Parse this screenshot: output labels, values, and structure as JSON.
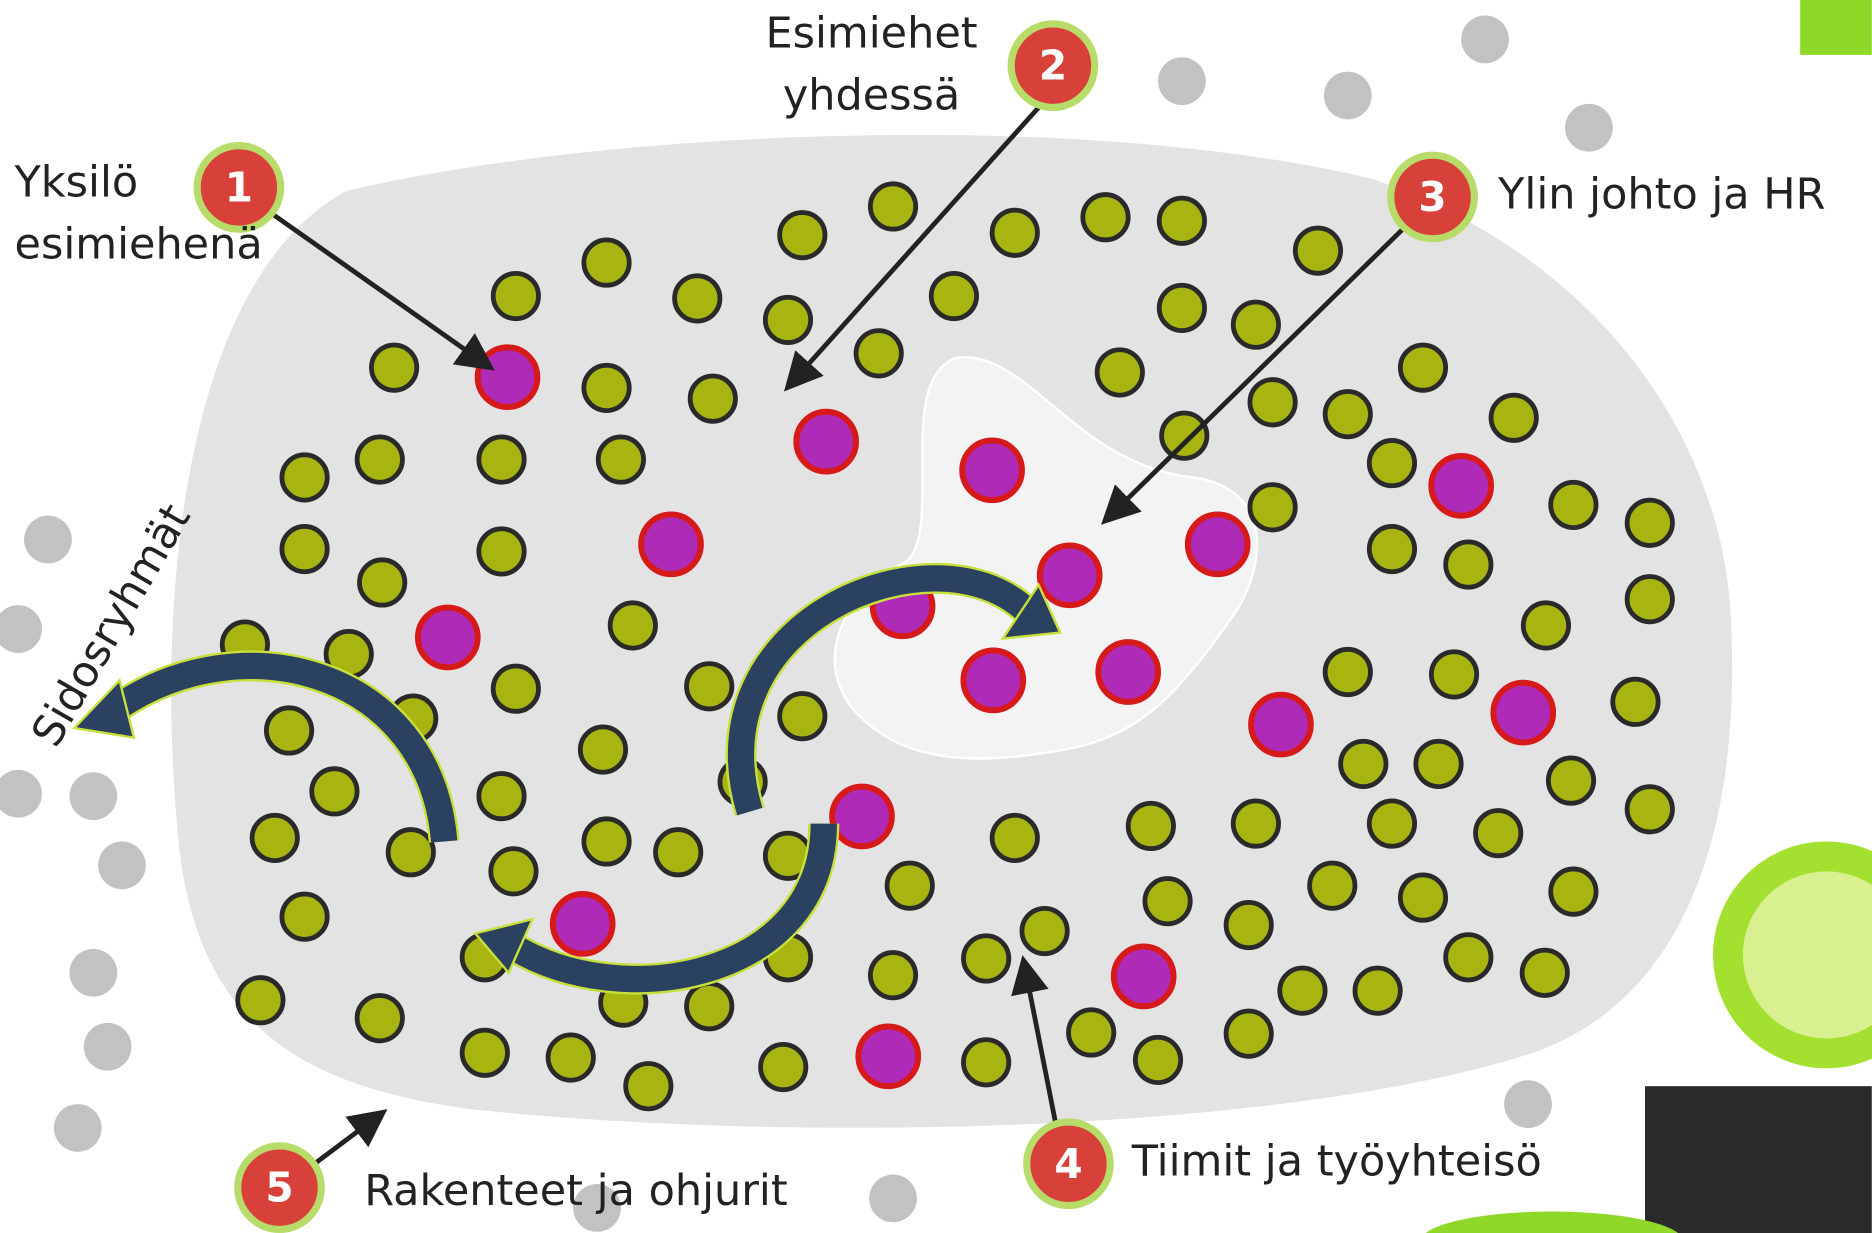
{
  "markers": [
    {
      "number": "1",
      "label_lines": [
        "Yksilö",
        "esimiehenä"
      ]
    },
    {
      "number": "2",
      "label_lines": [
        "Esimiehet",
        "yhdessä"
      ]
    },
    {
      "number": "3",
      "label_lines": [
        "Ylin johto ja HR"
      ]
    },
    {
      "number": "4",
      "label_lines": [
        "Tiimit ja työyhteisö"
      ]
    },
    {
      "number": "5",
      "label_lines": [
        "Rakenteet ja ohjurit"
      ]
    }
  ],
  "side_label": "Sidosryhmät"
}
